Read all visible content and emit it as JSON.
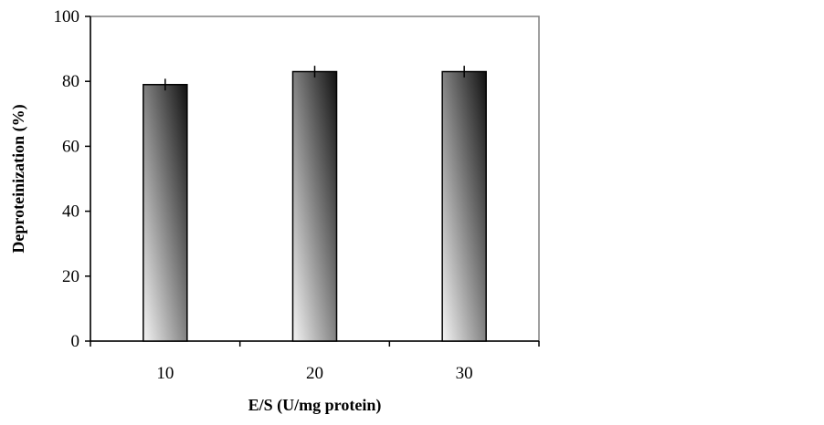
{
  "chart_data": {
    "type": "bar",
    "title": "",
    "xlabel": "E/S (U/mg protein)",
    "ylabel": "Deproteinization (%)",
    "categories": [
      "10",
      "20",
      "30"
    ],
    "values": [
      79,
      83,
      83
    ],
    "error": [
      1.8,
      1.8,
      1.8
    ],
    "ylim": [
      0,
      100
    ],
    "yticks": [
      0,
      20,
      40,
      60,
      80,
      100
    ],
    "grid": false,
    "legend": "none",
    "bar_fill": "vertical gradient light grey (bottom) to black (top)",
    "colors": {
      "gradient_light": "#f4f4f4",
      "gradient_dark": "#111111",
      "bar_outline": "#000000",
      "plot_border": "#808080",
      "axis": "#000000"
    }
  }
}
